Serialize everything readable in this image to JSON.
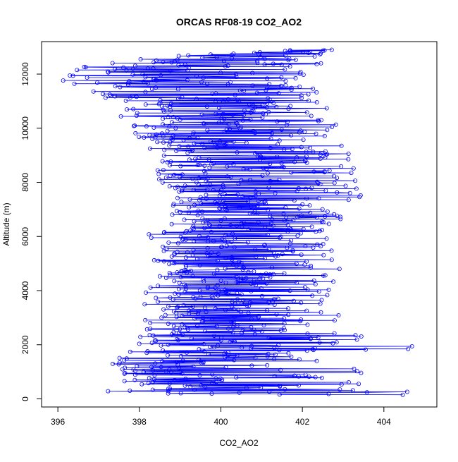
{
  "chart_data": {
    "type": "scatter",
    "title": "ORCAS RF08-19 CO2_AO2",
    "xlabel": "CO2_AO2",
    "ylabel": "Altitude (m)",
    "xlim": [
      395.6,
      405.3
    ],
    "ylim": [
      -300,
      13200
    ],
    "x_ticks": [
      396,
      398,
      400,
      402,
      404
    ],
    "y_ticks": [
      0,
      2000,
      4000,
      6000,
      8000,
      10000,
      12000
    ],
    "grid": false,
    "legend": "none",
    "series_color": "#0000ff",
    "marker": "open-circle-with-connecting-lines",
    "series": [
      {
        "values_profile": [
          {
            "altitude": 150,
            "co2": [
              397.2,
              398.4,
              399.3,
              400.2,
              401.5,
              403.0,
              404.8
            ]
          },
          {
            "altitude": 600,
            "co2": [
              397.3,
              398.2,
              399.0,
              399.8,
              400.8,
              402.5,
              404.3
            ]
          },
          {
            "altitude": 1000,
            "co2": [
              397.4,
              398.3,
              399.0,
              399.7,
              400.5,
              401.8,
              403.5
            ]
          },
          {
            "altitude": 1500,
            "co2": [
              397.3,
              398.4,
              399.1,
              399.8,
              400.4,
              401.5,
              403.0
            ]
          },
          {
            "altitude": 1900,
            "co2": [
              397.9,
              398.6,
              399.3,
              400.0,
              400.8,
              402.6,
              405.0
            ]
          },
          {
            "altitude": 2200,
            "co2": [
              398.0,
              398.8,
              399.4,
              400.1,
              400.9,
              402.1,
              403.8
            ]
          },
          {
            "altitude": 2800,
            "co2": [
              398.0,
              398.8,
              399.4,
              400.1,
              400.8,
              401.9,
              403.2
            ]
          },
          {
            "altitude": 3500,
            "co2": [
              398.1,
              398.9,
              399.5,
              400.1,
              400.8,
              401.7,
              402.5
            ]
          },
          {
            "altitude": 4200,
            "co2": [
              398.2,
              398.9,
              399.5,
              400.2,
              400.9,
              401.7,
              402.8
            ]
          },
          {
            "altitude": 4900,
            "co2": [
              398.3,
              399.0,
              399.6,
              400.3,
              401.0,
              401.9,
              403.0
            ]
          },
          {
            "altitude": 5500,
            "co2": [
              398.4,
              399.1,
              399.7,
              400.4,
              401.1,
              401.9,
              402.8
            ]
          },
          {
            "altitude": 6100,
            "co2": [
              398.2,
              399.0,
              399.6,
              400.3,
              401.1,
              402.0,
              403.0
            ]
          },
          {
            "altitude": 6700,
            "co2": [
              398.7,
              399.3,
              399.9,
              400.5,
              401.2,
              402.1,
              403.2
            ]
          },
          {
            "altitude": 7300,
            "co2": [
              398.8,
              399.4,
              400.0,
              400.6,
              401.3,
              402.4,
              403.7
            ]
          },
          {
            "altitude": 7800,
            "co2": [
              398.5,
              399.3,
              400.0,
              400.6,
              401.3,
              402.3,
              403.4
            ]
          },
          {
            "altitude": 8500,
            "co2": [
              398.4,
              399.3,
              400.0,
              400.7,
              401.4,
              402.3,
              403.3
            ]
          },
          {
            "altitude": 9100,
            "co2": [
              398.2,
              399.1,
              399.9,
              400.6,
              401.3,
              402.2,
              403.2
            ]
          },
          {
            "altitude": 9700,
            "co2": [
              397.9,
              398.8,
              399.6,
              400.4,
              401.2,
              402.1,
              403.0
            ]
          },
          {
            "altitude": 10300,
            "co2": [
              397.6,
              398.5,
              399.4,
              400.3,
              401.1,
              402.0,
              402.9
            ]
          },
          {
            "altitude": 10900,
            "co2": [
              397.2,
              398.2,
              399.1,
              400.0,
              400.9,
              401.8,
              402.7
            ]
          },
          {
            "altitude": 11500,
            "co2": [
              396.7,
              397.7,
              398.7,
              399.7,
              400.6,
              401.5,
              402.4
            ]
          },
          {
            "altitude": 11900,
            "co2": [
              395.7,
              396.5,
              397.4,
              398.3,
              399.3,
              400.5,
              402.0
            ]
          },
          {
            "altitude": 12400,
            "co2": [
              396.8,
              397.8,
              398.8,
              399.8,
              400.8,
              401.9,
              402.8
            ]
          },
          {
            "altitude": 12900,
            "co2": [
              400.5,
              401.2,
              401.8,
              402.3,
              402.7,
              403.0
            ]
          }
        ]
      }
    ]
  }
}
